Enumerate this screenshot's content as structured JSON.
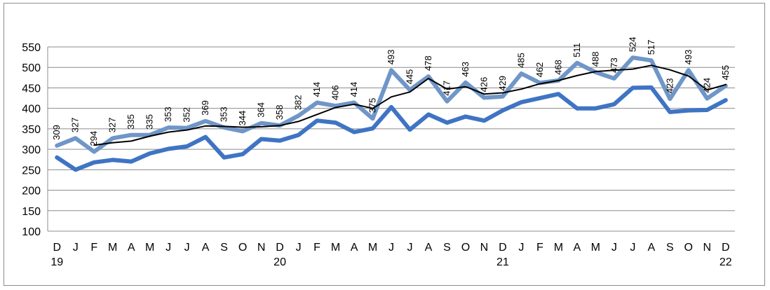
{
  "chart_data": {
    "type": "line",
    "title": "",
    "xlabel": "",
    "ylabel": "",
    "ylim": [
      100,
      550
    ],
    "yticks": [
      "100",
      "150",
      "200",
      "250",
      "300",
      "350",
      "400",
      "450",
      "500",
      "550"
    ],
    "grid": true,
    "x_month_labels": [
      "D",
      "J",
      "F",
      "M",
      "A",
      "M",
      "J",
      "J",
      "A",
      "S",
      "O",
      "N",
      "D",
      "J",
      "F",
      "M",
      "A",
      "M",
      "J",
      "J",
      "A",
      "S",
      "O",
      "N",
      "D",
      "J",
      "F",
      "M",
      "A",
      "M",
      "J",
      "J",
      "A",
      "S",
      "O",
      "N",
      "D"
    ],
    "x_year_labels": [
      {
        "index": 0,
        "label": "19"
      },
      {
        "index": 12,
        "label": "20"
      },
      {
        "index": 24,
        "label": "21"
      },
      {
        "index": 36,
        "label": "22"
      }
    ],
    "series": [
      {
        "color": "#6f96c8",
        "line_width": 6,
        "labeled": true,
        "values": [
          309,
          327,
          294,
          327,
          335,
          335,
          353,
          352,
          369,
          353,
          344,
          364,
          358,
          382,
          414,
          406,
          414,
          375,
          493,
          445,
          478,
          417,
          463,
          426,
          429,
          485,
          462,
          468,
          511,
          488,
          473,
          524,
          517,
          423,
          493,
          424,
          455
        ]
      },
      {
        "color": "#3f74c4",
        "line_width": 6,
        "labeled": false,
        "values": [
          280,
          250,
          268,
          274,
          270,
          290,
          301,
          307,
          330,
          280,
          288,
          325,
          321,
          335,
          370,
          365,
          342,
          351,
          403,
          348,
          385,
          365,
          380,
          370,
          395,
          415,
          425,
          435,
          400,
          400,
          410,
          450,
          451,
          391,
          395,
          396,
          420
        ]
      },
      {
        "color": "#000000",
        "line_width": 2,
        "labeled": false,
        "start_index": 2,
        "values": [
          310,
          316,
          320,
          332,
          342,
          347,
          357,
          356,
          354,
          355,
          358,
          368,
          385,
          402,
          410,
          400,
          428,
          440,
          473,
          447,
          453,
          435,
          438,
          447,
          460,
          468,
          480,
          490,
          493,
          496,
          505,
          494,
          479,
          445,
          458
        ]
      }
    ]
  }
}
